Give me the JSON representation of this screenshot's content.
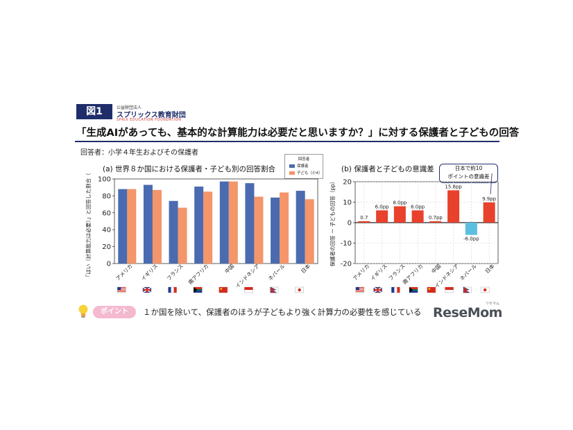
{
  "header": {
    "badge": "図1",
    "org_small": "公益財団法人",
    "org_name": "スプリックス教育財団",
    "org_en": "SPRIX EDUCATION FOUNDATION",
    "title": "「生成AIがあっても、基本的な計算能力は必要だと思いますか？」に対する保護者と子どもの回答",
    "respondent": "回答者：小学４年生およびその保護者"
  },
  "footer": {
    "point_label": "ポイント",
    "point_text": "１か国を除いて、保護者のほうが子どもより強く計算力の必要性を感じている",
    "watermark": "ReseMom",
    "watermark_ruby": "リセマム"
  },
  "chart_data": [
    {
      "type": "bar",
      "title": "(a) 世界８か国における保護者・子ども別の回答割合",
      "ylabel": "「はい（計算能力は必要）」と回答した割合（%）",
      "ylim": [
        0,
        100
      ],
      "yticks": [
        0,
        20,
        40,
        60,
        80,
        100
      ],
      "grid": false,
      "legend_title": "回答者",
      "legend_position": "top-right",
      "categories": [
        "アメリカ",
        "イギリス",
        "フランス",
        "南アフリカ",
        "中国",
        "インドネシア",
        "ネパール",
        "日本"
      ],
      "series": [
        {
          "name": "保護者",
          "color": "#4a6bb0",
          "values": [
            88,
            93,
            74,
            91,
            97,
            95,
            78,
            86
          ]
        },
        {
          "name": "子ども（小4）",
          "color": "#f4956a",
          "values": [
            88,
            87,
            66,
            85,
            97,
            79,
            84,
            76
          ]
        }
      ]
    },
    {
      "type": "bar",
      "title": "(b) 保護者と子どもの意識差",
      "ylabel": "保護者の回答 ー 子どもの回答（pp）",
      "ylim": [
        -20,
        20
      ],
      "yticks": [
        -20,
        -10,
        0,
        10,
        20
      ],
      "grid": true,
      "categories": [
        "アメリカ",
        "イギリス",
        "フランス",
        "南アフリカ",
        "中国",
        "インドネシア",
        "ネパール",
        "日本"
      ],
      "values": [
        0.7,
        6.0,
        8.0,
        6.0,
        0.7,
        15.8,
        -6.0,
        9.9
      ],
      "labels": [
        "0.7",
        "6.0pp",
        "8.0pp",
        "6.0pp",
        "0.7pp",
        "15.8pp",
        "-6.0pp",
        "9.9pp"
      ],
      "positive_color": "#e8412c",
      "negative_color": "#5bc0de",
      "annotation": [
        "日本で約10",
        "ポイントの意識差"
      ]
    }
  ]
}
